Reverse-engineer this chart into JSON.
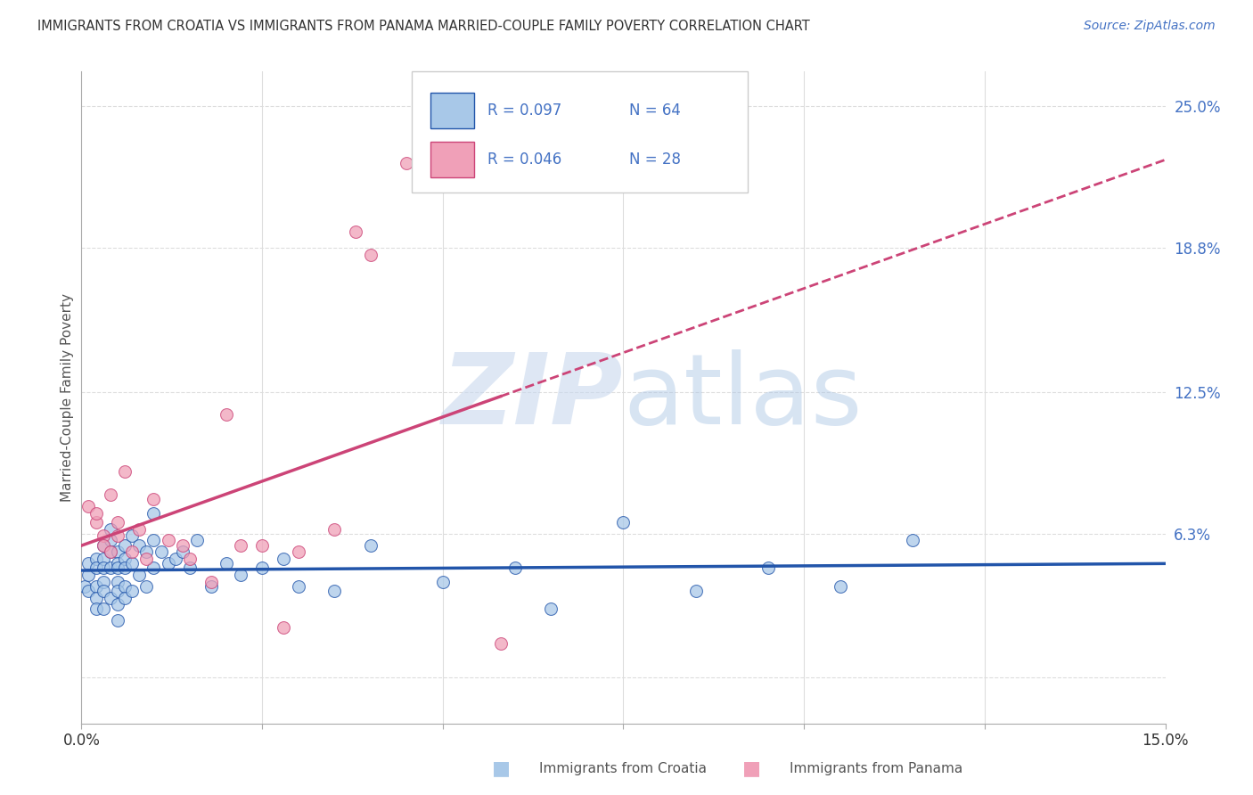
{
  "title": "IMMIGRANTS FROM CROATIA VS IMMIGRANTS FROM PANAMA MARRIED-COUPLE FAMILY POVERTY CORRELATION CHART",
  "source": "Source: ZipAtlas.com",
  "ylabel": "Married-Couple Family Poverty",
  "xlim": [
    0.0,
    0.15
  ],
  "ylim": [
    -0.02,
    0.265
  ],
  "color_croatia": "#A8C8E8",
  "color_panama": "#F0A0B8",
  "line_color_croatia": "#2255AA",
  "line_color_panama": "#CC4477",
  "legend_R_croatia": "R = 0.097",
  "legend_N_croatia": "N = 64",
  "legend_R_panama": "R = 0.046",
  "legend_N_panama": "N = 28",
  "background_color": "#FFFFFF",
  "grid_color": "#DDDDDD",
  "croatia_x": [
    0.0005,
    0.001,
    0.001,
    0.001,
    0.002,
    0.002,
    0.002,
    0.002,
    0.002,
    0.003,
    0.003,
    0.003,
    0.003,
    0.003,
    0.003,
    0.004,
    0.004,
    0.004,
    0.004,
    0.004,
    0.005,
    0.005,
    0.005,
    0.005,
    0.005,
    0.005,
    0.005,
    0.006,
    0.006,
    0.006,
    0.006,
    0.006,
    0.007,
    0.007,
    0.007,
    0.008,
    0.008,
    0.009,
    0.009,
    0.01,
    0.01,
    0.01,
    0.011,
    0.012,
    0.013,
    0.014,
    0.015,
    0.016,
    0.018,
    0.02,
    0.022,
    0.025,
    0.028,
    0.03,
    0.035,
    0.04,
    0.05,
    0.06,
    0.065,
    0.075,
    0.085,
    0.095,
    0.105,
    0.115
  ],
  "croatia_y": [
    0.04,
    0.05,
    0.045,
    0.038,
    0.052,
    0.048,
    0.04,
    0.035,
    0.03,
    0.058,
    0.052,
    0.048,
    0.042,
    0.038,
    0.03,
    0.065,
    0.06,
    0.055,
    0.048,
    0.035,
    0.055,
    0.05,
    0.048,
    0.042,
    0.038,
    0.032,
    0.025,
    0.058,
    0.052,
    0.048,
    0.04,
    0.035,
    0.062,
    0.05,
    0.038,
    0.058,
    0.045,
    0.055,
    0.04,
    0.072,
    0.06,
    0.048,
    0.055,
    0.05,
    0.052,
    0.055,
    0.048,
    0.06,
    0.04,
    0.05,
    0.045,
    0.048,
    0.052,
    0.04,
    0.038,
    0.058,
    0.042,
    0.048,
    0.03,
    0.068,
    0.038,
    0.048,
    0.04,
    0.06
  ],
  "panama_x": [
    0.001,
    0.002,
    0.002,
    0.003,
    0.003,
    0.004,
    0.004,
    0.005,
    0.005,
    0.006,
    0.007,
    0.008,
    0.009,
    0.01,
    0.012,
    0.014,
    0.015,
    0.018,
    0.02,
    0.022,
    0.025,
    0.028,
    0.03,
    0.035,
    0.038,
    0.04,
    0.045,
    0.058
  ],
  "panama_y": [
    0.075,
    0.068,
    0.072,
    0.062,
    0.058,
    0.08,
    0.055,
    0.068,
    0.062,
    0.09,
    0.055,
    0.065,
    0.052,
    0.078,
    0.06,
    0.058,
    0.052,
    0.042,
    0.115,
    0.058,
    0.058,
    0.022,
    0.055,
    0.065,
    0.195,
    0.185,
    0.225,
    0.015
  ],
  "ytick_right": [
    0.063,
    0.125,
    0.188,
    0.25
  ],
  "ytick_right_labels": [
    "6.3%",
    "12.5%",
    "18.8%",
    "25.0%"
  ]
}
